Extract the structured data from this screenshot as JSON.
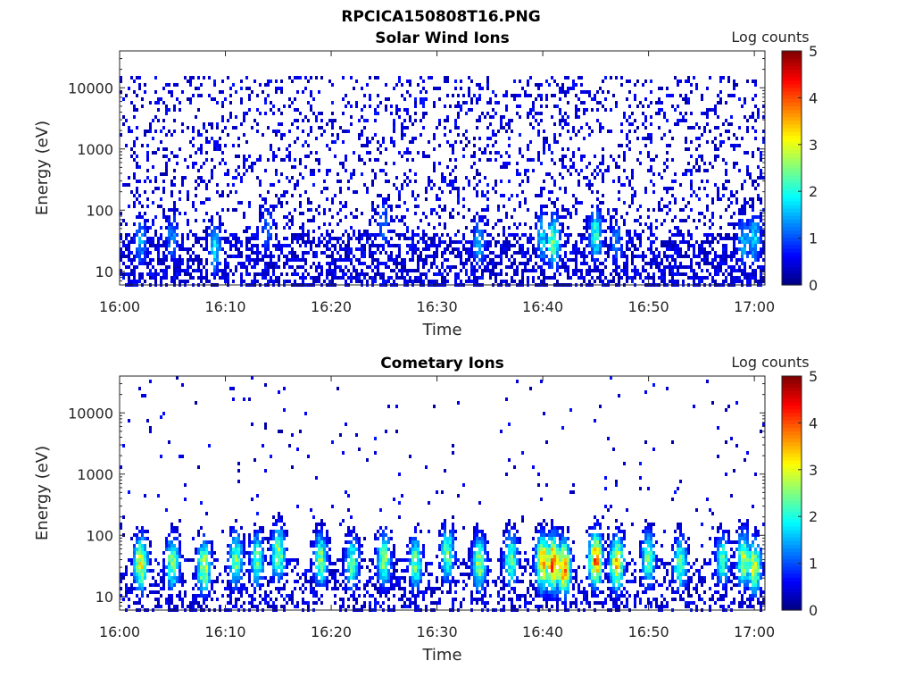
{
  "figure_title": "RPCICA150808T16.PNG",
  "chart_data": [
    {
      "type": "heatmap",
      "id": "solar-wind",
      "title": "Solar Wind Ions",
      "xlabel": "Time",
      "ylabel": "Energy (eV)",
      "x_ticks": [
        "16:00",
        "16:10",
        "16:20",
        "16:30",
        "16:40",
        "16:50",
        "17:00"
      ],
      "x_range": [
        "16:00",
        "17:01"
      ],
      "y_scale": "log",
      "y_ticks": [
        10,
        100,
        1000,
        10000
      ],
      "y_tick_labels": [
        "10",
        "100",
        "1000",
        "10000"
      ],
      "y_range": [
        6,
        40000
      ],
      "colorbar": {
        "label": "Log counts",
        "range": [
          0,
          5
        ],
        "ticks": [
          "0",
          "1",
          "2",
          "3",
          "4",
          "5"
        ],
        "colormap": "jet"
      },
      "background_level": 0.2,
      "background_max_energy": 15000,
      "hotspots": [
        {
          "time": "16:02",
          "energy": 30,
          "log_counts": 1.5
        },
        {
          "time": "16:05",
          "energy": 35,
          "log_counts": 1.4
        },
        {
          "time": "16:09",
          "energy": 25,
          "log_counts": 1.9
        },
        {
          "time": "16:14",
          "energy": 50,
          "log_counts": 1.2
        },
        {
          "time": "16:25",
          "energy": 60,
          "log_counts": 1.3
        },
        {
          "time": "16:34",
          "energy": 30,
          "log_counts": 1.6
        },
        {
          "time": "16:40",
          "energy": 35,
          "log_counts": 1.8
        },
        {
          "time": "16:41",
          "energy": 30,
          "log_counts": 2.5
        },
        {
          "time": "16:45",
          "energy": 40,
          "log_counts": 2.2
        },
        {
          "time": "16:47",
          "energy": 30,
          "log_counts": 1.3
        },
        {
          "time": "16:59",
          "energy": 30,
          "log_counts": 1.6
        },
        {
          "time": "17:00",
          "energy": 35,
          "log_counts": 1.8
        }
      ]
    },
    {
      "type": "heatmap",
      "id": "cometary",
      "title": "Cometary Ions",
      "xlabel": "Time",
      "ylabel": "Energy (eV)",
      "x_ticks": [
        "16:00",
        "16:10",
        "16:20",
        "16:30",
        "16:40",
        "16:50",
        "17:00"
      ],
      "x_range": [
        "16:00",
        "17:01"
      ],
      "y_scale": "log",
      "y_ticks": [
        10,
        100,
        1000,
        10000
      ],
      "y_tick_labels": [
        "10",
        "100",
        "1000",
        "10000"
      ],
      "y_range": [
        6,
        40000
      ],
      "colorbar": {
        "label": "Log counts",
        "range": [
          0,
          5
        ],
        "ticks": [
          "0",
          "1",
          "2",
          "3",
          "4",
          "5"
        ],
        "colormap": "jet"
      },
      "background_level": 0.02,
      "background_max_energy": 40000,
      "hotspots": [
        {
          "time": "16:02",
          "energy": 35,
          "log_counts": 3.2
        },
        {
          "time": "16:05",
          "energy": 35,
          "log_counts": 2.6
        },
        {
          "time": "16:08",
          "energy": 30,
          "log_counts": 3.0
        },
        {
          "time": "16:11",
          "energy": 40,
          "log_counts": 2.6
        },
        {
          "time": "16:13",
          "energy": 40,
          "log_counts": 2.4
        },
        {
          "time": "16:15",
          "energy": 50,
          "log_counts": 2.8
        },
        {
          "time": "16:19",
          "energy": 40,
          "log_counts": 2.6
        },
        {
          "time": "16:22",
          "energy": 35,
          "log_counts": 2.4
        },
        {
          "time": "16:25",
          "energy": 40,
          "log_counts": 2.7
        },
        {
          "time": "16:28",
          "energy": 35,
          "log_counts": 2.5
        },
        {
          "time": "16:31",
          "energy": 50,
          "log_counts": 2.5
        },
        {
          "time": "16:34",
          "energy": 35,
          "log_counts": 2.8
        },
        {
          "time": "16:37",
          "energy": 40,
          "log_counts": 2.5
        },
        {
          "time": "16:40",
          "energy": 35,
          "log_counts": 3.6
        },
        {
          "time": "16:41",
          "energy": 35,
          "log_counts": 4.2
        },
        {
          "time": "16:42",
          "energy": 30,
          "log_counts": 3.8
        },
        {
          "time": "16:45",
          "energy": 40,
          "log_counts": 3.8
        },
        {
          "time": "16:47",
          "energy": 35,
          "log_counts": 3.5
        },
        {
          "time": "16:50",
          "energy": 40,
          "log_counts": 2.6
        },
        {
          "time": "16:53",
          "energy": 35,
          "log_counts": 2.5
        },
        {
          "time": "16:57",
          "energy": 40,
          "log_counts": 2.3
        },
        {
          "time": "16:59",
          "energy": 40,
          "log_counts": 2.9
        },
        {
          "time": "17:00",
          "energy": 30,
          "log_counts": 3.0
        }
      ]
    }
  ]
}
